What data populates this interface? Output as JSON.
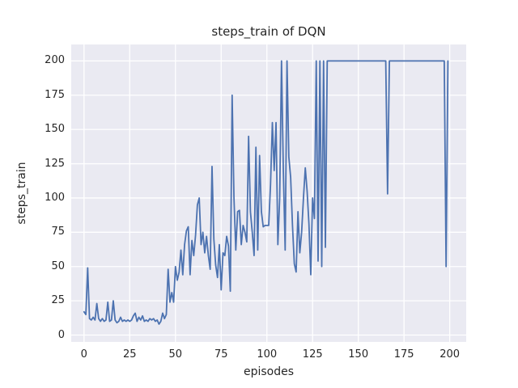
{
  "window": {
    "title": "steps_train of DQN"
  },
  "colors": {
    "figure_background": "#ffffff",
    "plot_background": "#eaeaf2",
    "grid": "#ffffff",
    "line": "#4c72b0",
    "text": "#262626"
  },
  "chart_data": {
    "type": "line",
    "title": "steps_train of DQN",
    "xlabel": "episodes",
    "ylabel": "steps_train",
    "x_ticks": [
      0,
      25,
      50,
      75,
      100,
      125,
      150,
      175,
      200
    ],
    "y_ticks": [
      0,
      25,
      50,
      75,
      100,
      125,
      150,
      175,
      200
    ],
    "xlim": [
      -7,
      209
    ],
    "ylim": [
      -5,
      212
    ],
    "grid": true,
    "legend": false,
    "series": [
      {
        "name": "steps_train",
        "color": "#4c72b0",
        "x_start": 0,
        "x_step": 1,
        "values": [
          17,
          15,
          49,
          12,
          11,
          13,
          11,
          23,
          12,
          10,
          12,
          10,
          11,
          24,
          10,
          11,
          25,
          11,
          9,
          10,
          13,
          10,
          11,
          10,
          11,
          10,
          11,
          14,
          16,
          10,
          13,
          11,
          14,
          10,
          11,
          10,
          12,
          11,
          12,
          10,
          11,
          8,
          10,
          16,
          12,
          15,
          48,
          24,
          31,
          24,
          50,
          40,
          46,
          62,
          44,
          66,
          76,
          79,
          44,
          69,
          58,
          73,
          95,
          100,
          66,
          75,
          60,
          72,
          58,
          48,
          123,
          70,
          51,
          42,
          66,
          33,
          60,
          58,
          72,
          65,
          32,
          175,
          100,
          62,
          90,
          91,
          66,
          80,
          75,
          68,
          145,
          90,
          75,
          58,
          137,
          62,
          131,
          90,
          79,
          80,
          80,
          80,
          110,
          155,
          120,
          155,
          66,
          100,
          200,
          120,
          62,
          200,
          130,
          115,
          80,
          52,
          46,
          90,
          60,
          75,
          100,
          122,
          105,
          81,
          44,
          100,
          85,
          200,
          54,
          200,
          50,
          200,
          64,
          200,
          200,
          200,
          200,
          200,
          200,
          200,
          200,
          200,
          200,
          200,
          200,
          200,
          200,
          200,
          200,
          200,
          200,
          200,
          200,
          200,
          200,
          200,
          200,
          200,
          200,
          200,
          200,
          200,
          200,
          200,
          200,
          200,
          103,
          200,
          200,
          200,
          200,
          200,
          200,
          200,
          200,
          200,
          200,
          200,
          200,
          200,
          200,
          200,
          200,
          200,
          200,
          200,
          200,
          200,
          200,
          200,
          200,
          200,
          200,
          200,
          200,
          200,
          200,
          200,
          50,
          200
        ]
      }
    ]
  }
}
